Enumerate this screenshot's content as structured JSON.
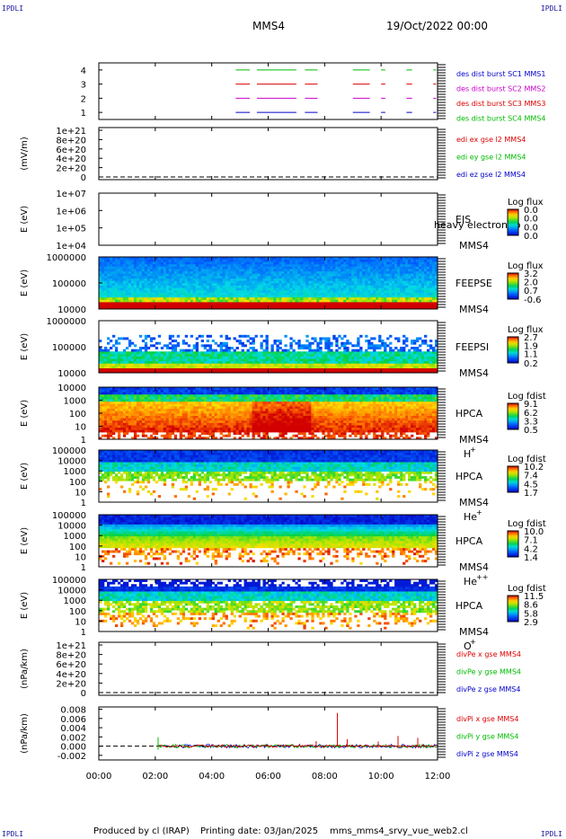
{
  "header": {
    "corner_tl": "IPDLI",
    "corner_tr": "IPDLI",
    "corner_bl": "IPDLI",
    "corner_br": "IPDLI",
    "spacecraft": "MMS4",
    "date": "19/Oct/2022 00:00"
  },
  "footer": {
    "producer": "Produced by cl (IRAP)",
    "printing": "Printing date: 03/Jan/2025",
    "file": "mms_mms4_srvy_vue_web2.cl"
  },
  "colors": {
    "mms1": "#0000cc",
    "mms2": "#cc00cc",
    "mms3": "#dd0000",
    "mms4": "#00bb00",
    "frame": "#000000"
  },
  "chart_data": {
    "type": "multi-panel",
    "xaxis": {
      "range_hours": [
        0,
        12
      ],
      "ticks": [
        "00:00",
        "02:00",
        "04:00",
        "06:00",
        "08:00",
        "10:00",
        "12:00"
      ]
    },
    "panels": [
      {
        "id": "burst",
        "type": "timeline",
        "ylim": [
          0.5,
          4.5
        ],
        "yticks": [
          "1",
          "2",
          "3",
          "4"
        ],
        "ylabel": "",
        "legend": [
          {
            "text": "des dist burst SC1 MMS1",
            "color": "#0000cc"
          },
          {
            "text": "des dist burst SC2 MMS2",
            "color": "#cc00cc"
          },
          {
            "text": "des dist burst SC3 MMS3",
            "color": "#dd0000"
          },
          {
            "text": "des dist burst SC4 MMS4",
            "color": "#00bb00"
          }
        ],
        "segments_hours": [
          [
            4.85,
            5.35
          ],
          [
            5.6,
            7.0
          ],
          [
            7.3,
            7.75
          ],
          [
            9.0,
            9.6
          ],
          [
            10.0,
            10.15
          ],
          [
            10.9,
            11.1
          ],
          [
            11.85,
            11.95
          ]
        ],
        "levels": [
          {
            "y": 1,
            "color": "#0000cc"
          },
          {
            "y": 2,
            "color": "#cc00cc"
          },
          {
            "y": 3,
            "color": "#dd0000"
          },
          {
            "y": 4,
            "color": "#00bb00"
          }
        ]
      },
      {
        "id": "edi",
        "type": "line",
        "ylim": [
          0,
          1e+21
        ],
        "yticks": [
          "0",
          "2e+20",
          "4e+20",
          "6e+20",
          "8e+20",
          "1e+21"
        ],
        "ylabel": "(mV/m)",
        "legend": [
          {
            "text": "edi ex gse l2 MMS4",
            "color": "#dd0000"
          },
          {
            "text": "edi ey gse l2 MMS4",
            "color": "#00bb00"
          },
          {
            "text": "edi ez gse l2 MMS4",
            "color": "#0000cc"
          }
        ],
        "zero_line": true
      },
      {
        "id": "eis",
        "type": "heatmap",
        "ylog": [
          4,
          7
        ],
        "yticks": [
          "1e+04",
          "1e+05",
          "1e+06",
          "1e+07"
        ],
        "ylabel": "E (eV)",
        "instrument": "EIS",
        "overlay_text": "heavy electron to",
        "spacecraft": "MMS4",
        "cbar_title": "Log flux",
        "cbar_values": [
          "0.0",
          "0.0",
          "0.0",
          "0.0"
        ],
        "cbar_frac": [
          1.0,
          0.67,
          0.33,
          0.0
        ],
        "fill": "none"
      },
      {
        "id": "feepse",
        "type": "heatmap",
        "ylog": [
          4,
          6
        ],
        "yticks": [
          "10000",
          "100000",
          "1000000"
        ],
        "ylabel": "E (eV)",
        "instrument": "FEEPSE",
        "spacecraft": "MMS4",
        "cbar_title": "Log flux",
        "cbar_values": [
          "3.2",
          "2.0",
          "0.7",
          "-0.6"
        ],
        "cbar_frac": [
          1.0,
          0.67,
          0.35,
          0.0
        ],
        "fill": "feepse"
      },
      {
        "id": "feepsi",
        "type": "heatmap",
        "ylog": [
          4,
          6
        ],
        "yticks": [
          "10000",
          "100000",
          "1000000"
        ],
        "ylabel": "E (eV)",
        "instrument": "FEEPSI",
        "spacecraft": "MMS4",
        "cbar_title": "Log flux",
        "cbar_values": [
          "2.7",
          "1.9",
          "1.1",
          "0.2"
        ],
        "cbar_frac": [
          1.0,
          0.68,
          0.36,
          0.0
        ],
        "fill": "feepsi"
      },
      {
        "id": "hpca_h",
        "type": "heatmap",
        "ylog": [
          0,
          4.3
        ],
        "yticks": [
          "1",
          "10",
          "100",
          "1000",
          "10000"
        ],
        "ylabel": "E (eV)",
        "instrument": "HPCA",
        "spacecraft": "MMS4",
        "species": "H",
        "species_sup": "+",
        "cbar_title": "Log fdist",
        "cbar_values": [
          "9.1",
          "6.2",
          "3.3",
          "0.5"
        ],
        "cbar_frac": [
          1.0,
          0.66,
          0.33,
          0.0
        ],
        "fill": "hpca_h"
      },
      {
        "id": "hpca_he",
        "type": "heatmap",
        "ylog": [
          0,
          5
        ],
        "yticks": [
          "1",
          "10",
          "100",
          "1000",
          "10000",
          "100000"
        ],
        "ylabel": "E (eV)",
        "instrument": "HPCA",
        "spacecraft": "MMS4",
        "species": "He",
        "species_sup": "+",
        "cbar_title": "Log fdist",
        "cbar_values": [
          "10.2",
          "7.4",
          "4.5",
          "1.7"
        ],
        "cbar_frac": [
          1.0,
          0.67,
          0.33,
          0.0
        ],
        "fill": "hpca_he"
      },
      {
        "id": "hpca_hepp",
        "type": "heatmap",
        "ylog": [
          0,
          5
        ],
        "yticks": [
          "1",
          "10",
          "100",
          "1000",
          "10000",
          "100000"
        ],
        "ylabel": "E (eV)",
        "instrument": "HPCA",
        "spacecraft": "MMS4",
        "species": "He",
        "species_sup": "++",
        "cbar_title": "Log fdist",
        "cbar_values": [
          "10.0",
          "7.1",
          "4.2",
          "1.4"
        ],
        "cbar_frac": [
          1.0,
          0.67,
          0.33,
          0.0
        ],
        "fill": "hpca_hepp"
      },
      {
        "id": "hpca_o",
        "type": "heatmap",
        "ylog": [
          0,
          5
        ],
        "yticks": [
          "1",
          "10",
          "100",
          "1000",
          "10000",
          "100000"
        ],
        "ylabel": "E (eV)",
        "instrument": "HPCA",
        "spacecraft": "MMS4",
        "species": "O",
        "species_sup": "+",
        "cbar_title": "Log fdist",
        "cbar_values": [
          "11.5",
          "8.6",
          "5.8",
          "2.9"
        ],
        "cbar_frac": [
          1.0,
          0.67,
          0.33,
          0.0
        ],
        "fill": "hpca_o"
      },
      {
        "id": "divpe",
        "type": "line",
        "ylim": [
          0,
          1e+21
        ],
        "yticks": [
          "0",
          "2e+20",
          "4e+20",
          "6e+20",
          "8e+20",
          "1e+21"
        ],
        "ylabel": "(nPa/km)",
        "legend": [
          {
            "text": "divPe x gse MMS4",
            "color": "#dd0000"
          },
          {
            "text": "divPe y gse MMS4",
            "color": "#00bb00"
          },
          {
            "text": "divPe z gse MMS4",
            "color": "#0000cc"
          }
        ],
        "zero_line": true
      },
      {
        "id": "divpi",
        "type": "line",
        "ylim": [
          -0.003,
          0.0085
        ],
        "yticks": [
          "-0.002",
          "0.000",
          "0.002",
          "0.004",
          "0.006",
          "0.008"
        ],
        "ytick_values": [
          -0.002,
          0.0,
          0.002,
          0.004,
          0.006,
          0.008
        ],
        "ylabel": "(nPa/km)",
        "legend": [
          {
            "text": "divPi x gse MMS4",
            "color": "#dd0000"
          },
          {
            "text": "divPi y gse MMS4",
            "color": "#00bb00"
          },
          {
            "text": "divPi z gse MMS4",
            "color": "#0000cc"
          }
        ],
        "zero_line": true,
        "data_start_hours": 2.1,
        "spikes": [
          {
            "t": 8.45,
            "v": 0.0072
          },
          {
            "t": 8.8,
            "v": 0.0015
          },
          {
            "t": 10.6,
            "v": 0.0022
          },
          {
            "t": 11.3,
            "v": 0.0018
          },
          {
            "t": 7.7,
            "v": 0.0011
          },
          {
            "t": 9.9,
            "v": 0.001
          }
        ]
      }
    ]
  }
}
